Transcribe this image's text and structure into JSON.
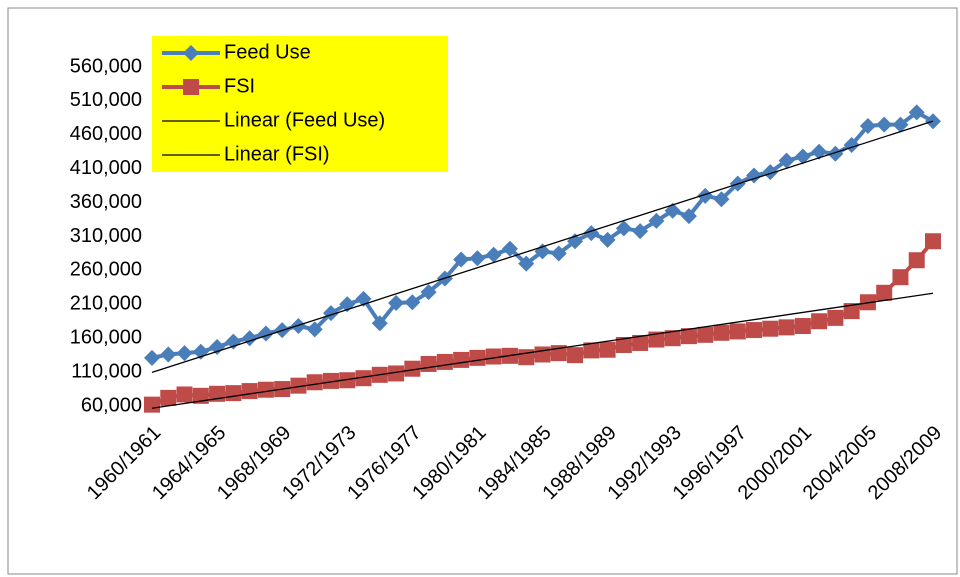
{
  "chart_data": {
    "type": "line",
    "categories": [
      "1960/1961",
      null,
      null,
      null,
      "1964/1965",
      null,
      null,
      null,
      "1968/1969",
      null,
      null,
      null,
      "1972/1973",
      null,
      null,
      null,
      "1976/1977",
      null,
      null,
      null,
      "1980/1981",
      null,
      null,
      null,
      "1984/1985",
      null,
      null,
      null,
      "1988/1989",
      null,
      null,
      null,
      "1992/1993",
      null,
      null,
      null,
      "1996/1997",
      null,
      null,
      null,
      "2000/2001",
      null,
      null,
      null,
      "2004/2005",
      null,
      null,
      null,
      "2008/2009"
    ],
    "series": [
      {
        "name": "Feed Use",
        "color": "#4a7ebb",
        "marker": "diamond",
        "values": [
          131000,
          136000,
          138000,
          140000,
          147000,
          155000,
          160000,
          167000,
          172000,
          178000,
          173000,
          197000,
          210000,
          218000,
          182000,
          212000,
          213000,
          228000,
          248000,
          276000,
          278000,
          283000,
          292000,
          270000,
          288000,
          285000,
          303000,
          315000,
          305000,
          322000,
          318000,
          333000,
          348000,
          340000,
          370000,
          365000,
          388000,
          400000,
          405000,
          422000,
          428000,
          435000,
          432000,
          445000,
          473000,
          475000,
          475000,
          493000,
          480000
        ],
        "trendline": {
          "name": "Linear (Feed Use)",
          "color": "#000000"
        }
      },
      {
        "name": "FSI",
        "color": "#be4b48",
        "marker": "square",
        "values": [
          62000,
          72000,
          77000,
          75000,
          78000,
          79000,
          82000,
          84000,
          85000,
          90000,
          95000,
          97000,
          98000,
          101000,
          106000,
          108000,
          115000,
          122000,
          125000,
          128000,
          131000,
          133000,
          134000,
          132000,
          136000,
          138000,
          135000,
          142000,
          143000,
          150000,
          153000,
          158000,
          160000,
          163000,
          165000,
          168000,
          170000,
          172000,
          174000,
          176000,
          178000,
          185000,
          190000,
          200000,
          213000,
          227000,
          250000,
          275000,
          303000
        ],
        "trendline": {
          "name": "Linear (FSI)",
          "color": "#000000"
        }
      }
    ],
    "ylim": [
      60000,
      560000
    ],
    "yticks": [
      {
        "value": 60000,
        "label": "60,000"
      },
      {
        "value": 110000,
        "label": "110,000"
      },
      {
        "value": 160000,
        "label": "160,000"
      },
      {
        "value": 210000,
        "label": "210,000"
      },
      {
        "value": 260000,
        "label": "260,000"
      },
      {
        "value": 310000,
        "label": "310,000"
      },
      {
        "value": 360000,
        "label": "360,000"
      },
      {
        "value": 410000,
        "label": "410,000"
      },
      {
        "value": 460000,
        "label": "460,000"
      },
      {
        "value": 510000,
        "label": "510,000"
      },
      {
        "value": 560000,
        "label": "560,000"
      }
    ],
    "grid": false,
    "legend": "top-left",
    "legend_color": "#ffff00"
  }
}
